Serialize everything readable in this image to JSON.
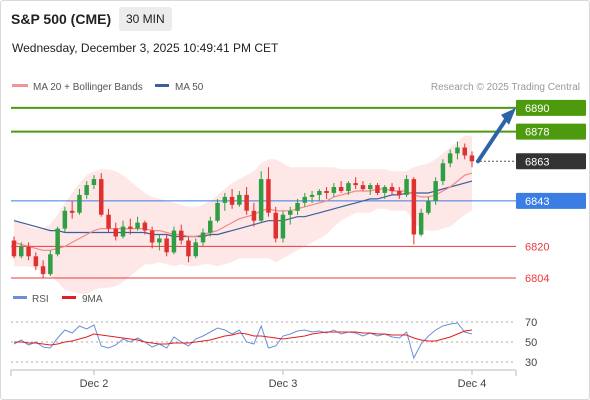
{
  "header": {
    "title": "S&P 500 (CME)",
    "timeframe": "30 MIN",
    "datetime": "Wednesday, December 3, 2025 10:49:41 PM CET",
    "credit": "Research © 2025 Trading Central"
  },
  "legend": [
    {
      "label": "MA 20 + Bollinger Bands",
      "color": "#f3958f"
    },
    {
      "label": "MA 50",
      "color": "#3a5f9a"
    }
  ],
  "rsi_legend": [
    {
      "label": "RSI",
      "color": "#6b8fd8"
    },
    {
      "label": "9MA",
      "color": "#e02020"
    }
  ],
  "levels": [
    {
      "value": 6890,
      "label": "6890",
      "kind": "target",
      "color": "#4d9a0e"
    },
    {
      "value": 6878,
      "label": "6878",
      "kind": "target",
      "color": "#4d9a0e"
    },
    {
      "value": 6863,
      "label": "6863",
      "kind": "last",
      "color": "#333333"
    },
    {
      "value": 6843,
      "label": "6843",
      "kind": "pivot",
      "color": "#3b7de3"
    },
    {
      "value": 6820,
      "label": "6820",
      "kind": "support",
      "color": "#e8393f"
    },
    {
      "value": 6804,
      "label": "6804",
      "kind": "support",
      "color": "#e8393f"
    }
  ],
  "chart_data": {
    "type": "candlestick",
    "x_ticks": [
      "Dec 2",
      "Dec 3",
      "Dec 4"
    ],
    "x_tick_index": [
      11,
      37,
      63
    ],
    "ylim": [
      6802,
      6895
    ],
    "up_color": "#2f9e44",
    "down_color": "#e03131",
    "ohlc": [
      [
        6823,
        6825,
        6814,
        6815
      ],
      [
        6815,
        6822,
        6814,
        6820
      ],
      [
        6820,
        6822,
        6813,
        6815
      ],
      [
        6815,
        6817,
        6808,
        6810
      ],
      [
        6810,
        6813,
        6804,
        6806
      ],
      [
        6806,
        6818,
        6805,
        6816
      ],
      [
        6816,
        6830,
        6815,
        6829
      ],
      [
        6829,
        6840,
        6827,
        6838
      ],
      [
        6838,
        6843,
        6834,
        6837
      ],
      [
        6837,
        6849,
        6836,
        6846
      ],
      [
        6846,
        6853,
        6844,
        6851
      ],
      [
        6851,
        6856,
        6849,
        6854
      ],
      [
        6854,
        6857,
        6835,
        6836
      ],
      [
        6836,
        6839,
        6827,
        6829
      ],
      [
        6829,
        6832,
        6823,
        6825
      ],
      [
        6825,
        6833,
        6824,
        6830
      ],
      [
        6830,
        6834,
        6826,
        6829
      ],
      [
        6829,
        6835,
        6828,
        6832
      ],
      [
        6832,
        6833,
        6826,
        6828
      ],
      [
        6828,
        6830,
        6819,
        6822
      ],
      [
        6822,
        6826,
        6818,
        6824
      ],
      [
        6824,
        6826,
        6815,
        6817
      ],
      [
        6817,
        6830,
        6816,
        6828
      ],
      [
        6828,
        6831,
        6821,
        6823
      ],
      [
        6823,
        6825,
        6812,
        6815
      ],
      [
        6815,
        6824,
        6814,
        6822
      ],
      [
        6822,
        6829,
        6820,
        6827
      ],
      [
        6827,
        6835,
        6825,
        6833
      ],
      [
        6833,
        6844,
        6832,
        6842
      ],
      [
        6842,
        6847,
        6838,
        6845
      ],
      [
        6845,
        6849,
        6839,
        6841
      ],
      [
        6841,
        6848,
        6840,
        6846
      ],
      [
        6846,
        6850,
        6836,
        6838
      ],
      [
        6838,
        6842,
        6830,
        6833
      ],
      [
        6833,
        6858,
        6832,
        6854
      ],
      [
        6854,
        6860,
        6835,
        6837
      ],
      [
        6837,
        6840,
        6822,
        6824
      ],
      [
        6824,
        6838,
        6822,
        6836
      ],
      [
        6836,
        6840,
        6831,
        6838
      ],
      [
        6838,
        6844,
        6836,
        6842
      ],
      [
        6842,
        6847,
        6840,
        6845
      ],
      [
        6845,
        6848,
        6842,
        6846
      ],
      [
        6846,
        6849,
        6843,
        6848
      ],
      [
        6848,
        6850,
        6844,
        6847
      ],
      [
        6847,
        6852,
        6845,
        6850
      ],
      [
        6850,
        6853,
        6847,
        6848
      ],
      [
        6848,
        6853,
        6846,
        6852
      ],
      [
        6852,
        6855,
        6849,
        6851
      ],
      [
        6851,
        6853,
        6848,
        6849
      ],
      [
        6849,
        6852,
        6846,
        6851
      ],
      [
        6851,
        6852,
        6846,
        6847
      ],
      [
        6847,
        6851,
        6844,
        6850
      ],
      [
        6850,
        6852,
        6846,
        6848
      ],
      [
        6848,
        6850,
        6844,
        6846
      ],
      [
        6846,
        6856,
        6845,
        6854
      ],
      [
        6854,
        6855,
        6821,
        6826
      ],
      [
        6826,
        6839,
        6825,
        6837
      ],
      [
        6837,
        6845,
        6836,
        6843
      ],
      [
        6843,
        6855,
        6841,
        6853
      ],
      [
        6853,
        6864,
        6851,
        6862
      ],
      [
        6862,
        6869,
        6860,
        6867
      ],
      [
        6867,
        6873,
        6864,
        6870
      ],
      [
        6870,
        6872,
        6864,
        6866
      ],
      [
        6866,
        6868,
        6860,
        6863
      ]
    ],
    "ma20": [
      6822,
      6821,
      6820,
      6819,
      6818,
      6818,
      6819,
      6820,
      6822,
      6824,
      6826,
      6828,
      6829,
      6829,
      6829,
      6829,
      6829,
      6829,
      6829,
      6828,
      6828,
      6827,
      6826,
      6826,
      6825,
      6825,
      6826,
      6827,
      6828,
      6830,
      6832,
      6834,
      6835,
      6836,
      6838,
      6839,
      6838,
      6838,
      6838,
      6839,
      6840,
      6841,
      6842,
      6843,
      6845,
      6846,
      6847,
      6848,
      6848,
      6848,
      6849,
      6849,
      6848,
      6848,
      6848,
      6846,
      6845,
      6845,
      6846,
      6848,
      6850,
      6853,
      6856,
      6857
    ],
    "bb_upper": [
      6834,
      6832,
      6830,
      6829,
      6829,
      6831,
      6836,
      6842,
      6847,
      6852,
      6856,
      6858,
      6859,
      6859,
      6858,
      6856,
      6853,
      6850,
      6847,
      6845,
      6844,
      6843,
      6842,
      6841,
      6840,
      6840,
      6841,
      6843,
      6846,
      6849,
      6852,
      6854,
      6856,
      6858,
      6862,
      6864,
      6864,
      6862,
      6860,
      6860,
      6860,
      6860,
      6860,
      6860,
      6860,
      6859,
      6859,
      6859,
      6859,
      6859,
      6859,
      6859,
      6858,
      6858,
      6858,
      6860,
      6861,
      6862,
      6864,
      6867,
      6870,
      6873,
      6876,
      6876
    ],
    "bb_lower": [
      6810,
      6810,
      6810,
      6809,
      6807,
      6805,
      6802,
      6798,
      6797,
      6796,
      6796,
      6798,
      6799,
      6799,
      6800,
      6802,
      6805,
      6808,
      6811,
      6811,
      6812,
      6811,
      6810,
      6811,
      6810,
      6810,
      6811,
      6811,
      6810,
      6811,
      6812,
      6814,
      6814,
      6814,
      6814,
      6814,
      6812,
      6814,
      6816,
      6818,
      6820,
      6822,
      6824,
      6826,
      6830,
      6833,
      6835,
      6837,
      6837,
      6837,
      6839,
      6839,
      6838,
      6838,
      6838,
      6832,
      6829,
      6828,
      6828,
      6829,
      6830,
      6833,
      6836,
      6838
    ],
    "ma50": [
      6833,
      6832,
      6831,
      6830,
      6829,
      6828,
      6828,
      6827,
      6827,
      6827,
      6827,
      6827,
      6827,
      6827,
      6827,
      6827,
      6827,
      6827,
      6827,
      6826,
      6826,
      6826,
      6825,
      6825,
      6825,
      6825,
      6825,
      6826,
      6826,
      6827,
      6828,
      6829,
      6830,
      6831,
      6832,
      6833,
      6833,
      6833,
      6834,
      6835,
      6835,
      6836,
      6837,
      6838,
      6839,
      6840,
      6841,
      6842,
      6843,
      6844,
      6844,
      6845,
      6846,
      6846,
      6847,
      6847,
      6847,
      6847,
      6848,
      6849,
      6850,
      6851,
      6852,
      6853
    ],
    "rsi": {
      "ylim": [
        20,
        80
      ],
      "ticks": [
        70,
        50,
        30
      ],
      "values": [
        48,
        52,
        47,
        50,
        45,
        44,
        54,
        62,
        59,
        66,
        63,
        67,
        46,
        44,
        47,
        53,
        50,
        54,
        50,
        45,
        48,
        44,
        55,
        50,
        46,
        53,
        56,
        60,
        64,
        62,
        58,
        62,
        50,
        48,
        66,
        44,
        46,
        56,
        58,
        61,
        62,
        60,
        61,
        59,
        62,
        58,
        60,
        59,
        56,
        59,
        56,
        58,
        55,
        54,
        60,
        34,
        48,
        56,
        62,
        66,
        68,
        69,
        60,
        58
      ],
      "ma9": [
        50,
        50,
        49,
        49,
        48,
        47,
        48,
        50,
        51,
        53,
        55,
        58,
        57,
        56,
        55,
        54,
        53,
        52,
        50,
        49,
        48,
        48,
        49,
        49,
        49,
        50,
        51,
        52,
        54,
        56,
        57,
        59,
        58,
        56,
        56,
        55,
        54,
        53,
        54,
        55,
        56,
        58,
        59,
        60,
        60,
        60,
        60,
        60,
        59,
        59,
        58,
        58,
        57,
        57,
        57,
        54,
        52,
        51,
        51,
        53,
        55,
        58,
        61,
        62
      ]
    }
  }
}
